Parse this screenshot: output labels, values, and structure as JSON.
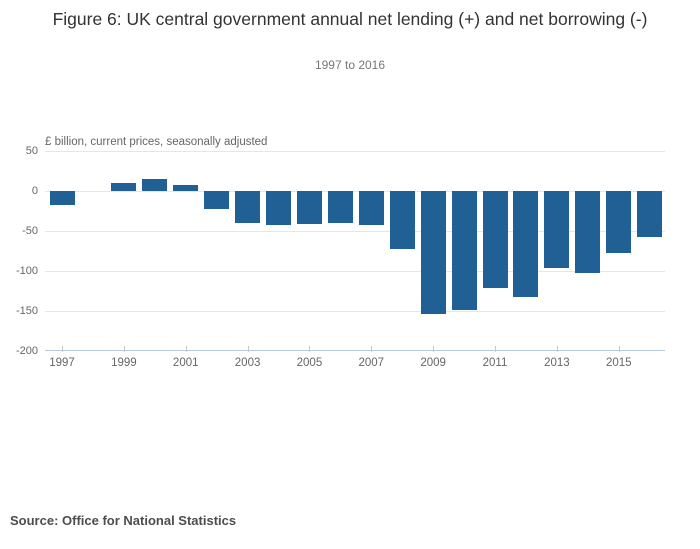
{
  "page": {
    "title": "Figure 6: UK central government annual net lending (+) and net borrowing (-)",
    "subtitle": "1997 to 2016",
    "source": "Source: Office for National Statistics"
  },
  "chart_data": {
    "type": "bar",
    "title": "Figure 6: UK central government annual net lending (+) and net borrowing (-)",
    "subtitle": "1997 to 2016",
    "unit_label": "£ billion, current prices, seasonally adjusted",
    "categories": [
      1997,
      1998,
      1999,
      2000,
      2001,
      2002,
      2003,
      2004,
      2005,
      2006,
      2007,
      2008,
      2009,
      2010,
      2011,
      2012,
      2013,
      2014,
      2015,
      2016
    ],
    "values": [
      -18,
      0,
      10,
      15,
      7,
      -22,
      -40,
      -42,
      -41,
      -40,
      -43,
      -72,
      -154,
      -149,
      -121,
      -132,
      -96,
      -103,
      -77,
      -57
    ],
    "x_tick_labels": [
      "1997",
      "1999",
      "2001",
      "2003",
      "2005",
      "2007",
      "2009",
      "2011",
      "2013",
      "2015"
    ],
    "y_ticks": [
      50,
      0,
      -50,
      -100,
      -150,
      -200
    ],
    "ylim": [
      -200,
      50
    ],
    "xlabel": "",
    "ylabel": "£ billion, current prices, seasonally adjusted",
    "grid": true,
    "legend_position": "none",
    "bar_color": "#206095",
    "axis_line_color": "#b9cbda",
    "gridline_color": "#e6e6e6",
    "text_color": "#666666"
  }
}
